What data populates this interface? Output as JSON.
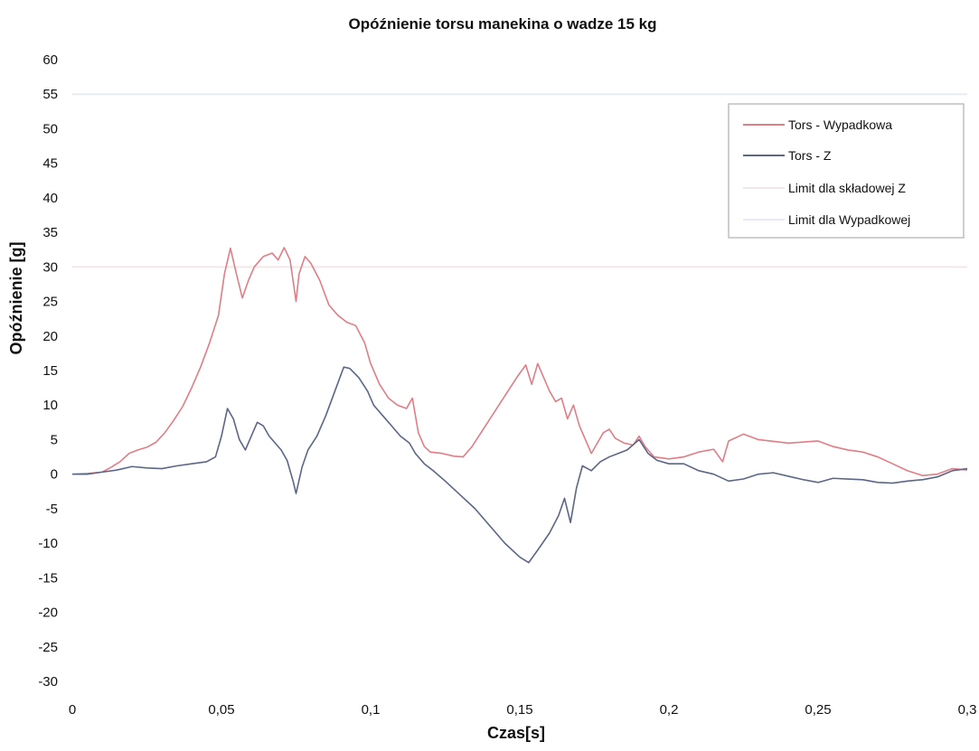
{
  "chart_data": {
    "type": "line",
    "title": "Opóźnienie torsu manekina o wadze 15 kg",
    "xlabel": "Czas[s]",
    "ylabel": "Opóźnienie [g]",
    "xlim": [
      0,
      0.3
    ],
    "ylim": [
      -30,
      60
    ],
    "x_ticks": [
      {
        "value": 0,
        "label": "0"
      },
      {
        "value": 0.05,
        "label": "0,05"
      },
      {
        "value": 0.1,
        "label": "0,1"
      },
      {
        "value": 0.15,
        "label": "0,15"
      },
      {
        "value": 0.2,
        "label": "0,2"
      },
      {
        "value": 0.25,
        "label": "0,25"
      },
      {
        "value": 0.3,
        "label": "0,3"
      }
    ],
    "y_ticks": [
      {
        "value": 60,
        "label": "60"
      },
      {
        "value": 55,
        "label": "55"
      },
      {
        "value": 50,
        "label": "50"
      },
      {
        "value": 45,
        "label": "45"
      },
      {
        "value": 40,
        "label": "40"
      },
      {
        "value": 35,
        "label": "35"
      },
      {
        "value": 30,
        "label": "30"
      },
      {
        "value": 25,
        "label": "25"
      },
      {
        "value": 20,
        "label": "20"
      },
      {
        "value": 15,
        "label": "15"
      },
      {
        "value": 10,
        "label": "10"
      },
      {
        "value": 5,
        "label": "5"
      },
      {
        "value": 0,
        "label": "0"
      },
      {
        "value": -5,
        "label": "-5"
      },
      {
        "value": -10,
        "label": "-10"
      },
      {
        "value": -15,
        "label": "-15"
      },
      {
        "value": -20,
        "label": "-20"
      },
      {
        "value": -25,
        "label": "-25"
      },
      {
        "value": -30,
        "label": "-30"
      }
    ],
    "grid": false,
    "legend": "top-right",
    "series": [
      {
        "name": "Tors - Wypadkowa",
        "color": "#e07d86",
        "points": [
          [
            0,
            0
          ],
          [
            0.005,
            0.1
          ],
          [
            0.01,
            0.3
          ],
          [
            0.013,
            1
          ],
          [
            0.016,
            1.8
          ],
          [
            0.019,
            3
          ],
          [
            0.022,
            3.5
          ],
          [
            0.025,
            3.9
          ],
          [
            0.028,
            4.6
          ],
          [
            0.031,
            6
          ],
          [
            0.034,
            7.8
          ],
          [
            0.037,
            9.8
          ],
          [
            0.04,
            12.5
          ],
          [
            0.043,
            15.5
          ],
          [
            0.046,
            19
          ],
          [
            0.049,
            23
          ],
          [
            0.051,
            29
          ],
          [
            0.053,
            32.7
          ],
          [
            0.055,
            29
          ],
          [
            0.057,
            25.5
          ],
          [
            0.059,
            28
          ],
          [
            0.061,
            30
          ],
          [
            0.064,
            31.5
          ],
          [
            0.067,
            32
          ],
          [
            0.069,
            31
          ],
          [
            0.071,
            32.8
          ],
          [
            0.073,
            31
          ],
          [
            0.075,
            25
          ],
          [
            0.076,
            29
          ],
          [
            0.078,
            31.5
          ],
          [
            0.08,
            30.5
          ],
          [
            0.083,
            28
          ],
          [
            0.086,
            24.5
          ],
          [
            0.089,
            23
          ],
          [
            0.092,
            22
          ],
          [
            0.095,
            21.5
          ],
          [
            0.098,
            19
          ],
          [
            0.1,
            16
          ],
          [
            0.103,
            13
          ],
          [
            0.106,
            11
          ],
          [
            0.109,
            10
          ],
          [
            0.112,
            9.5
          ],
          [
            0.114,
            11
          ],
          [
            0.116,
            6
          ],
          [
            0.118,
            4
          ],
          [
            0.12,
            3.2
          ],
          [
            0.124,
            3
          ],
          [
            0.128,
            2.6
          ],
          [
            0.131,
            2.5
          ],
          [
            0.134,
            4
          ],
          [
            0.137,
            6
          ],
          [
            0.14,
            8
          ],
          [
            0.143,
            10
          ],
          [
            0.146,
            12
          ],
          [
            0.149,
            14
          ],
          [
            0.152,
            15.8
          ],
          [
            0.154,
            13
          ],
          [
            0.156,
            16
          ],
          [
            0.158,
            14
          ],
          [
            0.16,
            12
          ],
          [
            0.162,
            10.5
          ],
          [
            0.164,
            11
          ],
          [
            0.166,
            8
          ],
          [
            0.168,
            10
          ],
          [
            0.17,
            7
          ],
          [
            0.172,
            5
          ],
          [
            0.174,
            3
          ],
          [
            0.176,
            4.5
          ],
          [
            0.178,
            6
          ],
          [
            0.18,
            6.5
          ],
          [
            0.182,
            5.2
          ],
          [
            0.185,
            4.5
          ],
          [
            0.188,
            4.2
          ],
          [
            0.19,
            5.5
          ],
          [
            0.192,
            4
          ],
          [
            0.195,
            2.5
          ],
          [
            0.2,
            2.2
          ],
          [
            0.205,
            2.5
          ],
          [
            0.21,
            3.2
          ],
          [
            0.215,
            3.6
          ],
          [
            0.218,
            1.8
          ],
          [
            0.22,
            4.8
          ],
          [
            0.225,
            5.8
          ],
          [
            0.23,
            5
          ],
          [
            0.24,
            4.5
          ],
          [
            0.25,
            4.8
          ],
          [
            0.255,
            4
          ],
          [
            0.26,
            3.5
          ],
          [
            0.265,
            3.2
          ],
          [
            0.27,
            2.5
          ],
          [
            0.275,
            1.5
          ],
          [
            0.28,
            0.5
          ],
          [
            0.285,
            -0.2
          ],
          [
            0.29,
            0
          ],
          [
            0.295,
            0.8
          ],
          [
            0.3,
            0.6
          ]
        ]
      },
      {
        "name": "Tors - Z",
        "color": "#5b6688",
        "points": [
          [
            0,
            0
          ],
          [
            0.005,
            0
          ],
          [
            0.01,
            0.3
          ],
          [
            0.015,
            0.6
          ],
          [
            0.02,
            1.1
          ],
          [
            0.025,
            0.9
          ],
          [
            0.03,
            0.8
          ],
          [
            0.035,
            1.2
          ],
          [
            0.04,
            1.5
          ],
          [
            0.045,
            1.8
          ],
          [
            0.048,
            2.5
          ],
          [
            0.05,
            5.5
          ],
          [
            0.052,
            9.5
          ],
          [
            0.054,
            8
          ],
          [
            0.056,
            5
          ],
          [
            0.058,
            3.5
          ],
          [
            0.06,
            5.5
          ],
          [
            0.062,
            7.5
          ],
          [
            0.064,
            7
          ],
          [
            0.066,
            5.5
          ],
          [
            0.068,
            4.5
          ],
          [
            0.07,
            3.5
          ],
          [
            0.072,
            2
          ],
          [
            0.074,
            -1
          ],
          [
            0.075,
            -2.8
          ],
          [
            0.077,
            1
          ],
          [
            0.079,
            3.5
          ],
          [
            0.082,
            5.5
          ],
          [
            0.085,
            8.5
          ],
          [
            0.088,
            12
          ],
          [
            0.091,
            15.5
          ],
          [
            0.093,
            15.3
          ],
          [
            0.096,
            14
          ],
          [
            0.099,
            12
          ],
          [
            0.101,
            10
          ],
          [
            0.104,
            8.5
          ],
          [
            0.107,
            7
          ],
          [
            0.11,
            5.5
          ],
          [
            0.113,
            4.5
          ],
          [
            0.115,
            3
          ],
          [
            0.118,
            1.5
          ],
          [
            0.121,
            0.5
          ],
          [
            0.125,
            -1
          ],
          [
            0.13,
            -3
          ],
          [
            0.135,
            -5
          ],
          [
            0.14,
            -7.5
          ],
          [
            0.145,
            -10
          ],
          [
            0.15,
            -12
          ],
          [
            0.153,
            -12.8
          ],
          [
            0.156,
            -11
          ],
          [
            0.16,
            -8.5
          ],
          [
            0.163,
            -6
          ],
          [
            0.165,
            -3.5
          ],
          [
            0.167,
            -7
          ],
          [
            0.169,
            -2
          ],
          [
            0.171,
            1.2
          ],
          [
            0.174,
            0.5
          ],
          [
            0.177,
            1.8
          ],
          [
            0.18,
            2.5
          ],
          [
            0.183,
            3
          ],
          [
            0.186,
            3.5
          ],
          [
            0.19,
            5
          ],
          [
            0.193,
            3
          ],
          [
            0.196,
            2
          ],
          [
            0.2,
            1.5
          ],
          [
            0.205,
            1.5
          ],
          [
            0.21,
            0.5
          ],
          [
            0.215,
            0
          ],
          [
            0.22,
            -1
          ],
          [
            0.225,
            -0.7
          ],
          [
            0.23,
            0
          ],
          [
            0.235,
            0.2
          ],
          [
            0.24,
            -0.3
          ],
          [
            0.245,
            -0.8
          ],
          [
            0.25,
            -1.2
          ],
          [
            0.255,
            -0.6
          ],
          [
            0.26,
            -0.7
          ],
          [
            0.265,
            -0.8
          ],
          [
            0.27,
            -1.2
          ],
          [
            0.275,
            -1.3
          ],
          [
            0.28,
            -1
          ],
          [
            0.285,
            -0.8
          ],
          [
            0.29,
            -0.4
          ],
          [
            0.295,
            0.5
          ],
          [
            0.3,
            0.8
          ]
        ]
      },
      {
        "name": "Limit dla składowej Z",
        "color": "#f3e7e9",
        "points": [
          [
            0,
            30
          ],
          [
            0.3,
            30
          ]
        ]
      },
      {
        "name": "Limit dla Wypadkowej",
        "color": "#e8ebf3",
        "points": [
          [
            0,
            55
          ],
          [
            0.3,
            55
          ]
        ]
      }
    ]
  }
}
